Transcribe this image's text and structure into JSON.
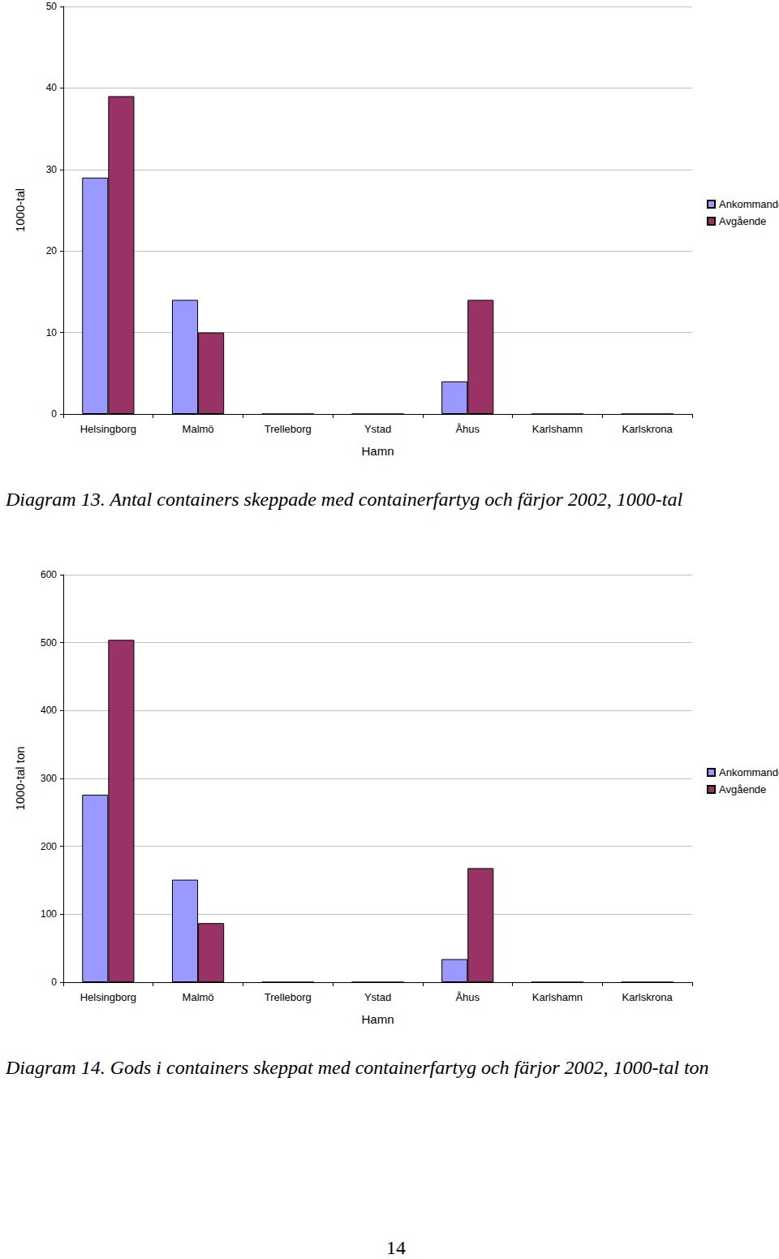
{
  "chart_data": [
    {
      "type": "bar",
      "title": "Diagram 13. Antal containers skeppade med containerfartyg och färjor 2002, 1000-tal",
      "x_label": "Hamn",
      "y_label": "1000-tal",
      "categories": [
        "Helsingborg",
        "Malmö",
        "Trelleborg",
        "Ystad",
        "Åhus",
        "Karlshamn",
        "Karlskrona"
      ],
      "series": [
        {
          "name": "Ankommande",
          "color": "#9999ff",
          "values": [
            29,
            14,
            0,
            0,
            4,
            0,
            0
          ]
        },
        {
          "name": "Avgående",
          "color": "#993366",
          "values": [
            39,
            10,
            0,
            0,
            14,
            0,
            0
          ]
        }
      ],
      "ylim": [
        0,
        50
      ],
      "yticks": [
        0,
        10,
        20,
        30,
        40,
        50
      ],
      "grid": true,
      "legend": "right"
    },
    {
      "type": "bar",
      "title": "Diagram 14. Gods i containers skeppat med containerfartyg och färjor 2002, 1000-tal ton",
      "x_label": "Hamn",
      "y_label": "1000-tal ton",
      "categories": [
        "Helsingborg",
        "Malmö",
        "Trelleborg",
        "Ystad",
        "Åhus",
        "Karlshamn",
        "Karlskrona"
      ],
      "series": [
        {
          "name": "Ankommande",
          "color": "#9999ff",
          "values": [
            276,
            151,
            0,
            0,
            34,
            0,
            0
          ]
        },
        {
          "name": "Avgående",
          "color": "#993366",
          "values": [
            504,
            87,
            0,
            0,
            168,
            0,
            0
          ]
        }
      ],
      "ylim": [
        0,
        600
      ],
      "yticks": [
        0,
        100,
        200,
        300,
        400,
        500,
        600
      ],
      "grid": true,
      "legend": "right"
    }
  ],
  "page_number": 14
}
